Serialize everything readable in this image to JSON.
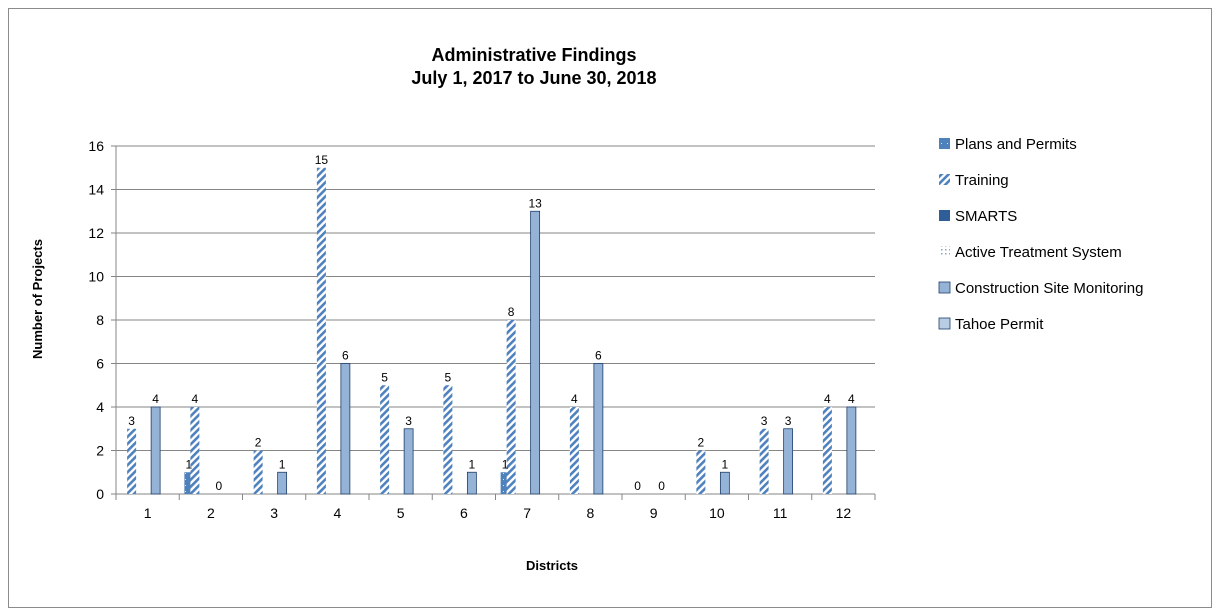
{
  "chart_data": {
    "type": "bar",
    "title": "Administrative Findings",
    "subtitle": "July 1, 2017 to June 30, 2018",
    "xlabel": "Districts",
    "ylabel": "Number of Projects",
    "ylim": [
      0,
      16
    ],
    "yticks": [
      0,
      2,
      4,
      6,
      8,
      10,
      12,
      14,
      16
    ],
    "grid": true,
    "legend_position": "right",
    "categories": [
      "1",
      "2",
      "3",
      "4",
      "5",
      "6",
      "7",
      "8",
      "9",
      "10",
      "11",
      "12"
    ],
    "series": [
      {
        "name": "Plans and Permits",
        "color": "#4f81bd",
        "pattern": "dotted-solid",
        "values": [
          null,
          1,
          null,
          null,
          null,
          null,
          1,
          null,
          null,
          null,
          null,
          null
        ]
      },
      {
        "name": "Training",
        "color": "#4f81bd",
        "pattern": "diagonal-stripes",
        "values": [
          3,
          4,
          2,
          15,
          5,
          5,
          8,
          4,
          0,
          2,
          3,
          4
        ]
      },
      {
        "name": "SMARTS",
        "color": "#2e5d97",
        "pattern": "solid",
        "values": [
          null,
          null,
          null,
          null,
          null,
          null,
          null,
          null,
          null,
          null,
          null,
          null
        ]
      },
      {
        "name": "Active Treatment System",
        "color": "#7fa7d3",
        "pattern": "sparse-dots",
        "values": [
          null,
          null,
          null,
          null,
          null,
          null,
          null,
          null,
          null,
          null,
          null,
          null
        ]
      },
      {
        "name": "Construction Site Monitoring",
        "color": "#95b3d7",
        "pattern": "solid-outlined",
        "values": [
          4,
          0,
          1,
          6,
          3,
          1,
          13,
          6,
          0,
          1,
          3,
          4
        ]
      },
      {
        "name": "Tahoe Permit",
        "color": "#b8cce4",
        "pattern": "solid-outlined",
        "values": [
          null,
          null,
          null,
          null,
          null,
          null,
          null,
          null,
          null,
          null,
          null,
          null
        ]
      }
    ]
  }
}
